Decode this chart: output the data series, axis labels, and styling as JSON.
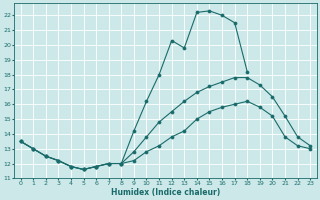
{
  "xlabel": "Humidex (Indice chaleur)",
  "background_color": "#cce8e8",
  "grid_color": "#ffffff",
  "line_color": "#1a6b6b",
  "xlim": [
    -0.5,
    23.5
  ],
  "ylim": [
    11,
    22.8
  ],
  "yticks": [
    11,
    12,
    13,
    14,
    15,
    16,
    17,
    18,
    19,
    20,
    21,
    22
  ],
  "xticks": [
    0,
    1,
    2,
    3,
    4,
    5,
    6,
    7,
    8,
    9,
    10,
    11,
    12,
    13,
    14,
    15,
    16,
    17,
    18,
    19,
    20,
    21,
    22,
    23
  ],
  "line1_x": [
    0,
    1,
    2,
    3,
    4,
    5,
    6,
    7,
    8,
    9,
    10,
    11,
    12,
    13,
    14,
    15,
    16,
    17,
    18
  ],
  "line1_y": [
    13.5,
    13.0,
    12.5,
    12.2,
    11.8,
    11.6,
    11.8,
    12.0,
    12.0,
    14.2,
    16.2,
    18.0,
    20.3,
    19.8,
    22.2,
    22.3,
    22.0,
    21.5,
    18.2
  ],
  "line2_x": [
    0,
    1,
    2,
    3,
    4,
    5,
    6,
    7,
    8,
    9,
    10,
    11,
    12,
    13,
    14,
    15,
    16,
    17,
    18,
    19,
    20,
    21,
    22,
    23
  ],
  "line2_y": [
    13.5,
    13.0,
    12.5,
    12.2,
    11.8,
    11.6,
    11.8,
    12.0,
    12.0,
    12.8,
    13.8,
    14.8,
    15.5,
    16.2,
    16.8,
    17.2,
    17.5,
    17.8,
    17.8,
    17.3,
    16.5,
    15.2,
    13.8,
    13.2
  ],
  "line3_x": [
    0,
    1,
    2,
    3,
    4,
    5,
    6,
    7,
    8,
    9,
    10,
    11,
    12,
    13,
    14,
    15,
    16,
    17,
    18,
    19,
    20,
    21,
    22,
    23
  ],
  "line3_y": [
    13.5,
    13.0,
    12.5,
    12.2,
    11.8,
    11.6,
    11.8,
    12.0,
    12.0,
    12.2,
    12.8,
    13.2,
    13.8,
    14.2,
    15.0,
    15.5,
    15.8,
    16.0,
    16.2,
    15.8,
    15.2,
    13.8,
    13.2,
    13.0
  ]
}
